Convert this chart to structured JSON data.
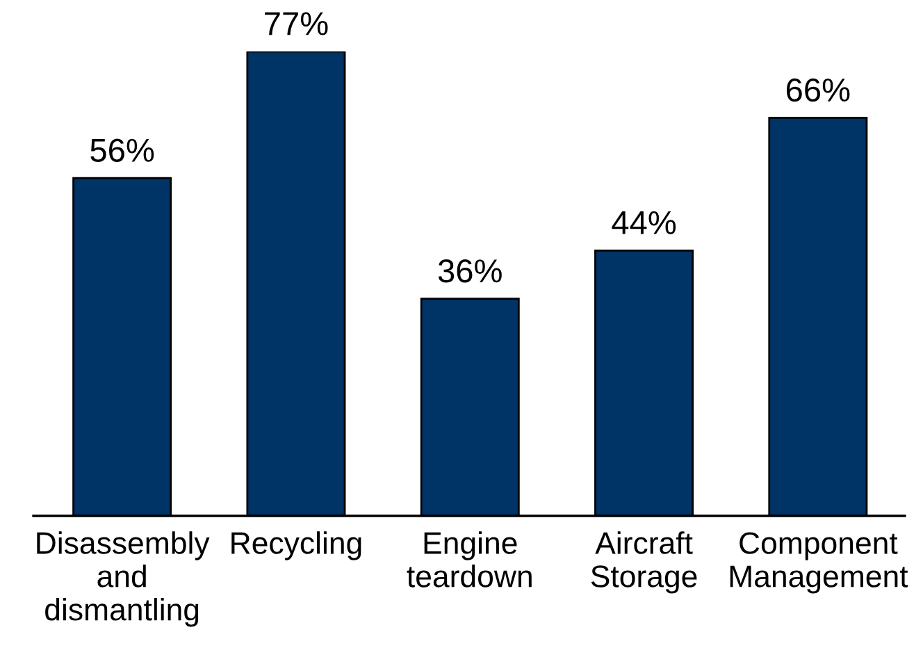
{
  "chart_data": {
    "type": "bar",
    "categories": [
      "Disassembly\nand\ndismantling",
      "Recycling",
      "Engine\nteardown",
      "Aircraft\nStorage",
      "Component\nManagement"
    ],
    "values": [
      56,
      77,
      36,
      44,
      66
    ],
    "value_labels": [
      "56%",
      "77%",
      "36%",
      "44%",
      "66%"
    ],
    "color": "#003366",
    "tick_labels": "x",
    "grid": false,
    "legend": false
  }
}
